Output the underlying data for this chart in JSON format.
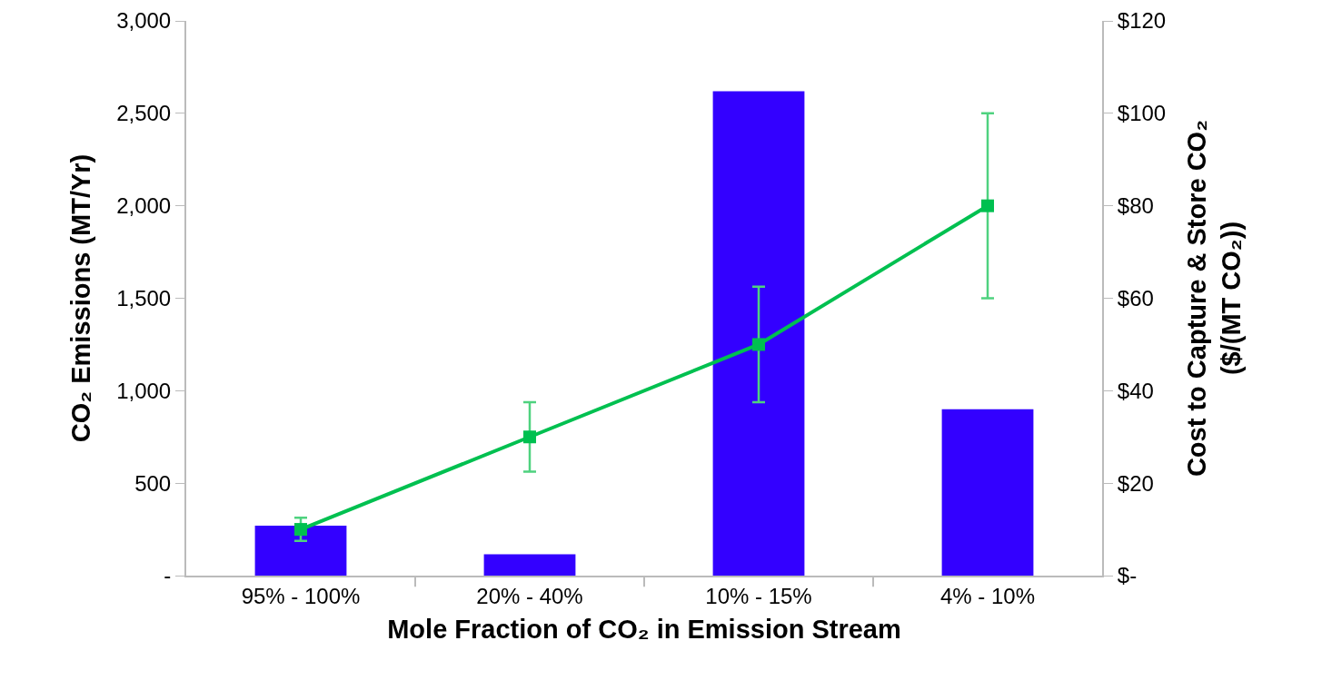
{
  "chart_data": {
    "type": "bar",
    "categories": [
      "95% - 100%",
      "20% - 40%",
      "10% - 15%",
      "4% - 10%"
    ],
    "xlabel": "Mole Fraction of CO₂ in Emission Stream",
    "ylabel": "CO₂ Emissions (MT/Yr)",
    "y2label": "Cost to Capture & Store CO₂\n($/(MT CO₂))",
    "series": [
      {
        "color": "#3300ff",
        "values": [
          270,
          115,
          2620,
          900
        ]
      },
      {
        "type": "line",
        "axis": "y2",
        "color": "#00c050",
        "values": [
          10,
          30,
          50,
          80
        ],
        "errors": [
          2.5,
          7.5,
          12.5,
          20
        ],
        "marker": "square",
        "line_style": "solid"
      }
    ],
    "ylim": [
      0,
      3000
    ],
    "yticks": [
      {
        "value": 0,
        "label": "-"
      },
      {
        "value": 500,
        "label": "500"
      },
      {
        "value": 1000,
        "label": "1,000"
      },
      {
        "value": 1500,
        "label": "1,500"
      },
      {
        "value": 2000,
        "label": "2,000"
      },
      {
        "value": 2500,
        "label": "2,500"
      },
      {
        "value": 3000,
        "label": "3,000"
      }
    ],
    "y2lim": [
      0,
      120
    ],
    "y2ticks": [
      {
        "value": 0,
        "label": "$-"
      },
      {
        "value": 20,
        "label": "$20"
      },
      {
        "value": 40,
        "label": "$40"
      },
      {
        "value": 60,
        "label": "$60"
      },
      {
        "value": 80,
        "label": "$80"
      },
      {
        "value": 100,
        "label": "$100"
      },
      {
        "value": 120,
        "label": "$120"
      }
    ],
    "grid": false
  }
}
